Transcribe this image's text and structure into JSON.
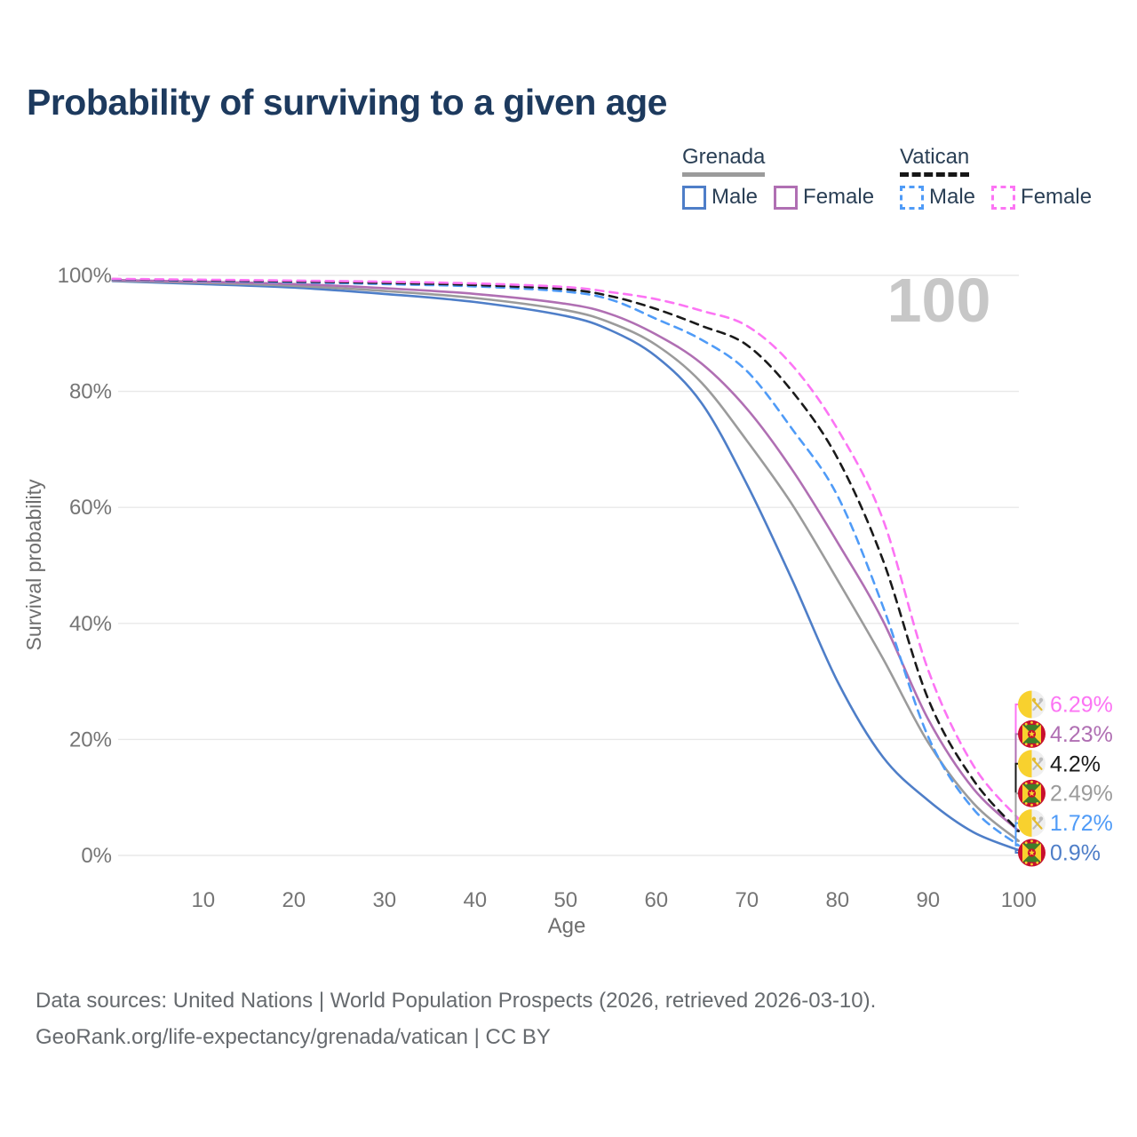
{
  "title": "Probability of surviving to a given age",
  "legend": {
    "groups": [
      {
        "title": "Grenada",
        "line_style": "solid",
        "underline_color": "#9b9b9b",
        "items": [
          {
            "label": "Male",
            "color": "#4e7ec8"
          },
          {
            "label": "Female",
            "color": "#b06fb3"
          }
        ]
      },
      {
        "title": "Vatican",
        "line_style": "dashed",
        "underline_color": "#161616",
        "items": [
          {
            "label": "Male",
            "color": "#4f9bf7"
          },
          {
            "label": "Female",
            "color": "#fc74f4"
          }
        ]
      }
    ]
  },
  "chart_data": {
    "type": "line",
    "title": "Probability of surviving to a given age",
    "xlabel": "Age",
    "ylabel": "Survival probability",
    "xlim": [
      0,
      100
    ],
    "ylim": [
      0,
      100
    ],
    "x_ticks": [
      10,
      20,
      30,
      40,
      50,
      60,
      70,
      80,
      90,
      100
    ],
    "y_ticks": [
      0,
      20,
      40,
      60,
      80,
      100
    ],
    "y_tick_suffix": "%",
    "grid": true,
    "watermark": "100",
    "x": [
      0,
      10,
      20,
      30,
      40,
      50,
      55,
      60,
      65,
      70,
      75,
      80,
      85,
      90,
      95,
      100
    ],
    "series": [
      {
        "name": "Grenada Male",
        "country": "Grenada",
        "sex": "male",
        "color": "#4e7ec8",
        "dashed": false,
        "flag": "grenada",
        "end_label": "0.9%",
        "end_value": 0.9,
        "values": [
          99.0,
          98.5,
          97.9,
          96.8,
          95.4,
          93.0,
          90.5,
          86.0,
          78.0,
          64.0,
          47.5,
          30.0,
          17.0,
          9.5,
          4.0,
          0.9
        ]
      },
      {
        "name": "Grenada Combined",
        "country": "Grenada",
        "sex": "combined",
        "color": "#9b9b9b",
        "dashed": false,
        "flag": "grenada",
        "end_label": "2.49%",
        "end_value": 2.49,
        "values": [
          99.1,
          98.7,
          98.2,
          97.3,
          96.1,
          94.0,
          91.8,
          88.0,
          81.5,
          71.5,
          60.5,
          47.5,
          34.0,
          19.5,
          9.0,
          2.49
        ]
      },
      {
        "name": "Grenada Female",
        "country": "Grenada",
        "sex": "female",
        "color": "#b06fb3",
        "dashed": false,
        "flag": "grenada",
        "end_label": "4.23%",
        "end_value": 4.23,
        "values": [
          99.2,
          98.9,
          98.5,
          97.8,
          96.8,
          95.1,
          93.3,
          89.8,
          84.8,
          77.0,
          66.5,
          54.0,
          40.5,
          23.5,
          11.5,
          4.23
        ]
      },
      {
        "name": "Vatican Male",
        "country": "Vatican",
        "sex": "male",
        "color": "#4f9bf7",
        "dashed": true,
        "flag": "vatican",
        "end_label": "1.72%",
        "end_value": 1.72,
        "values": [
          99.3,
          99.05,
          98.8,
          98.5,
          98.1,
          97.2,
          95.8,
          92.5,
          88.9,
          83.5,
          73.5,
          62.0,
          43.0,
          20.5,
          8.0,
          1.72
        ]
      },
      {
        "name": "Vatican Combined",
        "country": "Vatican",
        "sex": "combined",
        "color": "#1a1a1a",
        "dashed": true,
        "flag": "vatican",
        "end_label": "4.2%",
        "end_value": 4.2,
        "values": [
          99.35,
          99.15,
          98.95,
          98.7,
          98.35,
          97.6,
          96.4,
          94.2,
          91.3,
          88.0,
          80.0,
          68.5,
          51.0,
          27.0,
          13.0,
          4.2
        ]
      },
      {
        "name": "Vatican Female",
        "country": "Vatican",
        "sex": "female",
        "color": "#fc74f4",
        "dashed": true,
        "flag": "vatican",
        "end_label": "6.29%",
        "end_value": 6.29,
        "values": [
          99.4,
          99.25,
          99.1,
          98.9,
          98.6,
          98.0,
          97.1,
          95.9,
          93.9,
          91.3,
          84.5,
          73.5,
          58.0,
          32.0,
          15.5,
          6.29
        ]
      }
    ]
  },
  "footer": {
    "line1": "Data sources: United Nations | World Population Prospects (2026, retrieved 2026-03-10).",
    "line2": "GeoRank.org/life-expectancy/grenada/vatican | CC BY"
  }
}
